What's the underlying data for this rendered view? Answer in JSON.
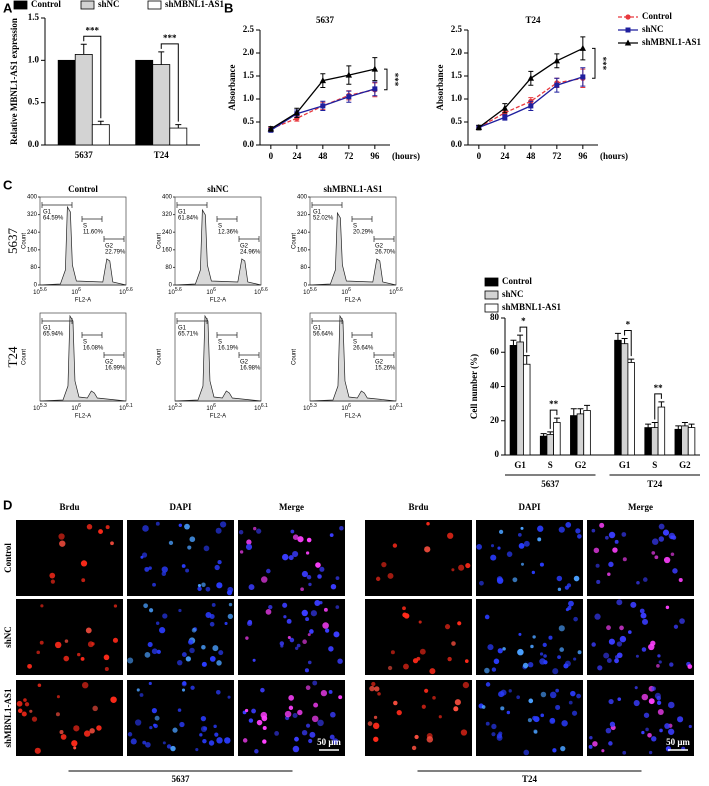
{
  "chart_data": [
    {
      "type": "bar",
      "ylabel": "Relative MBNL1-AS1 expression",
      "categories": [
        "5637",
        "T24"
      ],
      "series": [
        {
          "name": "Control",
          "color": "#000000",
          "values": [
            1.0,
            1.0
          ]
        },
        {
          "name": "shNC",
          "color": "#d3d3d3",
          "values": [
            1.07,
            0.95
          ],
          "errors": [
            0.12,
            0.15
          ]
        },
        {
          "name": "shMBNL1-AS1",
          "color": "#ffffff",
          "values": [
            0.24,
            0.2
          ],
          "errors": [
            0.04,
            0.04
          ]
        }
      ],
      "annotations": [
        "***",
        "***"
      ],
      "legend": "top",
      "ylim": [
        0,
        1.5
      ],
      "yticks": [
        {
          "value": 0,
          "label": "0.0"
        },
        {
          "value": 0.5,
          "label": "0.5"
        },
        {
          "value": 1,
          "label": "1.0"
        },
        {
          "value": 1.5,
          "label": "1.5"
        }
      ]
    },
    {
      "type": "line",
      "title": "5637",
      "ylabel": "Absorbance",
      "xlabel": "(hours)",
      "x": [
        0,
        24,
        48,
        72,
        96
      ],
      "series": [
        {
          "color": "#e8383d",
          "marker": "circle",
          "dash": true,
          "values": [
            0.35,
            0.58,
            0.85,
            1.08,
            1.2
          ],
          "errors": [
            0.03,
            0.06,
            0.08,
            0.1,
            0.15
          ]
        },
        {
          "color": "#1f1f9e",
          "marker": "square",
          "dash": false,
          "values": [
            0.32,
            0.68,
            0.85,
            1.05,
            1.22
          ],
          "errors": [
            0.03,
            0.08,
            0.1,
            0.12,
            0.15
          ]
        },
        {
          "color": "#000000",
          "marker": "triangle",
          "dash": false,
          "values": [
            0.35,
            0.7,
            1.4,
            1.52,
            1.65
          ],
          "errors": [
            0.05,
            0.1,
            0.15,
            0.2,
            0.25
          ]
        }
      ],
      "annotations": [
        "***"
      ],
      "xlim": [
        -10,
        110
      ],
      "xticks": [
        0,
        24,
        48,
        72,
        96
      ],
      "ylim": [
        0,
        2.5
      ],
      "yticks": [
        {
          "value": 0,
          "label": "0.0"
        },
        {
          "value": 0.5,
          "label": "0.5"
        },
        {
          "value": 1,
          "label": "1.0"
        },
        {
          "value": 1.5,
          "label": "1.5"
        },
        {
          "value": 2,
          "label": "2.0"
        },
        {
          "value": 2.5,
          "label": "2.5"
        }
      ]
    },
    {
      "type": "line",
      "title": "T24",
      "ylabel": "Absorbance",
      "xlabel": "(hours)",
      "x": [
        0,
        24,
        48,
        72,
        96
      ],
      "series": [
        {
          "name": "Control",
          "color": "#e8383d",
          "marker": "circle",
          "dash": true,
          "values": [
            0.38,
            0.7,
            0.95,
            1.35,
            1.45
          ],
          "errors": [
            0.04,
            0.06,
            0.08,
            0.1,
            0.2
          ]
        },
        {
          "name": "shNC",
          "color": "#1f1f9e",
          "marker": "square",
          "dash": false,
          "values": [
            0.38,
            0.6,
            0.85,
            1.3,
            1.48
          ],
          "errors": [
            0.04,
            0.06,
            0.1,
            0.15,
            0.2
          ]
        },
        {
          "name": "shMBNL1-AS1",
          "color": "#000000",
          "marker": "triangle",
          "dash": false,
          "values": [
            0.38,
            0.8,
            1.45,
            1.83,
            2.1
          ],
          "errors": [
            0.05,
            0.1,
            0.15,
            0.15,
            0.25
          ]
        }
      ],
      "annotations": [
        "***"
      ],
      "legend": "right",
      "xlim": [
        -10,
        110
      ],
      "xticks": [
        0,
        24,
        48,
        72,
        96
      ],
      "ylim": [
        0,
        2.5
      ],
      "yticks": [
        {
          "value": 0,
          "label": "0.0"
        },
        {
          "value": 0.5,
          "label": "0.5"
        },
        {
          "value": 1,
          "label": "1.0"
        },
        {
          "value": 1.5,
          "label": "1.5"
        },
        {
          "value": 2,
          "label": "2.0"
        },
        {
          "value": 2.5,
          "label": "2.5"
        }
      ]
    },
    {
      "type": "flow",
      "columns": [
        "Control",
        "shNC",
        "shMBNL1-AS1"
      ],
      "xlabel": "FL2-A",
      "ylabel": "Count",
      "rows": [
        {
          "label": "5637",
          "ylim": [
            0,
            400
          ],
          "yticks": [
            0,
            80,
            160,
            240,
            320,
            400
          ],
          "xticks": [
            {
              "base": "10",
              "exp": "5.6"
            },
            {
              "base": "10",
              "exp": "6"
            },
            {
              "base": "10",
              "exp": "6.6"
            }
          ],
          "panels": [
            [
              {
                "name": "G1",
                "label": "64.59%"
              },
              {
                "name": "S",
                "label": "11.60%"
              },
              {
                "name": "G2",
                "label": "22.79%"
              }
            ],
            [
              {
                "name": "G1",
                "label": "61.84%"
              },
              {
                "name": "S",
                "label": "12.36%"
              },
              {
                "name": "G2",
                "label": "24.96%"
              }
            ],
            [
              {
                "name": "G1",
                "label": "52.02%"
              },
              {
                "name": "S",
                "label": "20.29%"
              },
              {
                "name": "G2",
                "label": "26.70%"
              }
            ]
          ]
        },
        {
          "label": "T24",
          "ylim": [
            0,
            400
          ],
          "yticks": [],
          "xticks": [
            {
              "base": "10",
              "exp": "5.3"
            },
            {
              "base": "10",
              "exp": "6"
            },
            {
              "base": "10",
              "exp": "6.1"
            }
          ],
          "panels": [
            [
              {
                "name": "G1",
                "label": "65.94%"
              },
              {
                "name": "S",
                "label": "16.08%"
              },
              {
                "name": "G2",
                "label": "16.99%"
              }
            ],
            [
              {
                "name": "G1",
                "label": "65.71%"
              },
              {
                "name": "S",
                "label": "16.19%"
              },
              {
                "name": "G2",
                "label": "16.98%"
              }
            ],
            [
              {
                "name": "G1",
                "label": "56.64%"
              },
              {
                "name": "S",
                "label": "26.64%"
              },
              {
                "name": "G2",
                "label": "15.26%"
              }
            ]
          ]
        }
      ]
    },
    {
      "type": "bar",
      "ylabel": "Cell number (%)",
      "categories": [
        "G1",
        "S",
        "G2",
        "G1",
        "S",
        "G2"
      ],
      "groups": [
        "5637",
        "T24"
      ],
      "series": [
        {
          "name": "Control",
          "color": "#000000",
          "values": [
            64,
            11,
            23,
            67,
            16,
            15
          ],
          "errors": [
            3,
            1.5,
            4,
            4,
            2,
            2
          ]
        },
        {
          "name": "shNC",
          "color": "#d3d3d3",
          "values": [
            66,
            12,
            24,
            65,
            16,
            17
          ],
          "errors": [
            4,
            1.5,
            3,
            3,
            3,
            2
          ]
        },
        {
          "name": "shMBNL1-AS1",
          "color": "#ffffff",
          "values": [
            53,
            19,
            26,
            54,
            28,
            16
          ],
          "errors": [
            5,
            2.5,
            3,
            2,
            3,
            2
          ]
        }
      ],
      "annotations": [
        "*",
        "**",
        null,
        "*",
        "**",
        null
      ],
      "legend": "upper-left",
      "ylim": [
        0,
        80
      ],
      "yticks": [
        0,
        20,
        40,
        60,
        80
      ]
    }
  ],
  "figure": {
    "panel_labels": [
      "A",
      "B",
      "C",
      "D"
    ],
    "microscopy": {
      "columns": [
        "Brdu",
        "DAPI",
        "Merge"
      ],
      "rows": [
        "Control",
        "shNC",
        "shMBNL1-AS1"
      ],
      "groups": [
        "5637",
        "T24"
      ],
      "scale_bar": "50 μm"
    }
  }
}
